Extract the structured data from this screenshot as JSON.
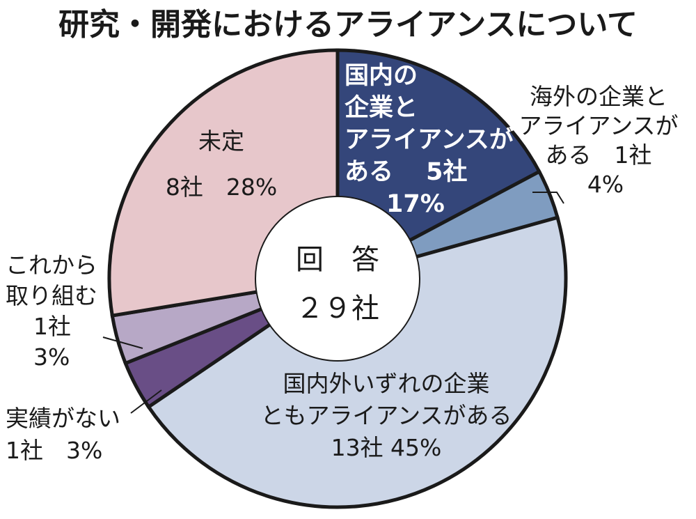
{
  "chart_data": {
    "type": "pie",
    "style": "donut",
    "title": "研究・開発におけるアライアンスについて",
    "center_label": {
      "line1": "回　答",
      "line2": "２９社"
    },
    "total": 29,
    "slices": [
      {
        "id": "domestic",
        "label_lines": [
          "国内の",
          "企業と",
          "アライアンスが",
          "ある　 5社",
          "17%"
        ],
        "count": 5,
        "percent": 17,
        "color": "#34467a",
        "text_color": "#ffffff"
      },
      {
        "id": "overseas",
        "label_lines": [
          "海外の企業と",
          "アライアンスが",
          "ある　1社",
          "4%"
        ],
        "count": 1,
        "percent": 4,
        "color": "#7f9cc0",
        "text_color": "#1a1a1a"
      },
      {
        "id": "both",
        "label_lines": [
          "国内外いずれの企業",
          "ともアライアンスがある",
          "13社 45%"
        ],
        "count": 13,
        "percent": 45,
        "color": "#ccd6e7",
        "text_color": "#1a1a1a"
      },
      {
        "id": "no-record",
        "label_lines": [
          "実績がない",
          "1社　3%"
        ],
        "count": 1,
        "percent": 3,
        "color": "#694e86",
        "text_color": "#1a1a1a"
      },
      {
        "id": "planned",
        "label_lines": [
          "これから",
          "取り組む",
          "1社",
          "3%"
        ],
        "count": 1,
        "percent": 3,
        "color": "#b7a8c6",
        "text_color": "#1a1a1a"
      },
      {
        "id": "undecided",
        "label_lines": [
          "未定",
          "8社　28%"
        ],
        "count": 8,
        "percent": 28,
        "color": "#e7c7cb",
        "text_color": "#1a1a1a"
      }
    ]
  }
}
